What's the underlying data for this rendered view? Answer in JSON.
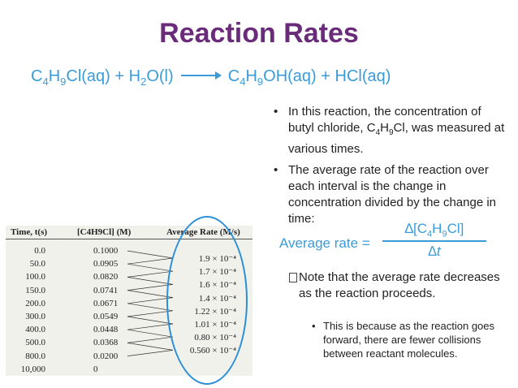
{
  "title": "Reaction Rates",
  "equation": {
    "lhs": [
      "C",
      "4",
      "H",
      "9",
      "Cl(aq) + H",
      "2",
      "O(l)"
    ],
    "rhs": [
      "C",
      "4",
      "H",
      "9",
      "OH(aq) + HCl(aq)"
    ]
  },
  "bullets": {
    "b1_pre": "In this reaction, the concentration of butyl chloride, C",
    "b1_s1": "4",
    "b1_mid": "H",
    "b1_s2": "9",
    "b1_post": "Cl, was measured at various times.",
    "b2": "The average rate of the reaction over each interval is the change in concentration divided by the change in time:"
  },
  "formula": {
    "label": "Average rate =",
    "num_parts": [
      "∆[C",
      "4",
      "H",
      "9",
      "Cl]"
    ],
    "den": "∆t"
  },
  "note": "Note that the average rate decreases as the reaction proceeds.",
  "subnote": "This is because as the reaction goes forward, there are fewer collisions between reactant molecules.",
  "table": {
    "headers": [
      "Time, t(s)",
      "[C4H9Cl] (M)",
      "Average Rate (M/s)"
    ],
    "times": [
      "0.0",
      "50.0",
      "100.0",
      "150.0",
      "200.0",
      "300.0",
      "400.0",
      "500.0",
      "800.0",
      "10,000"
    ],
    "concentrations": [
      "0.1000",
      "0.0905",
      "0.0820",
      "0.0741",
      "0.0671",
      "0.0549",
      "0.0448",
      "0.0368",
      "0.0200",
      "0"
    ],
    "rates": [
      "1.9 × 10⁻⁴",
      "1.7 × 10⁻⁴",
      "1.6 × 10⁻⁴",
      "1.4 × 10⁻⁴",
      "1.22 × 10⁻⁴",
      "1.01 × 10⁻⁴",
      "0.80 × 10⁻⁴",
      "0.560 × 10⁻⁴"
    ]
  },
  "colors": {
    "title": "#6a2b7a",
    "accent": "#3b9bd8",
    "oval": "#2a8fd6"
  }
}
